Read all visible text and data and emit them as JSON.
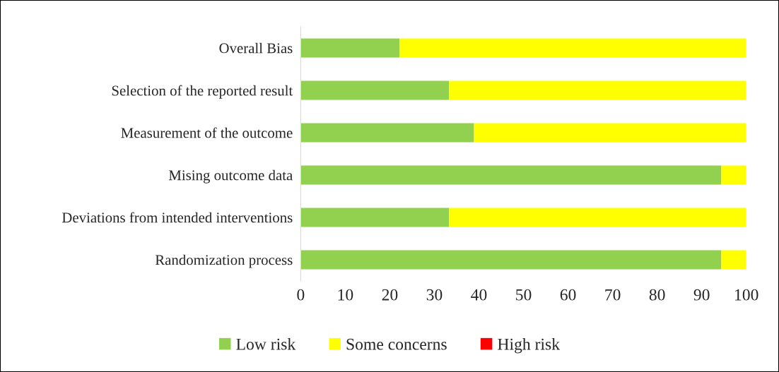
{
  "chart_data": {
    "type": "bar",
    "orientation": "horizontal",
    "stacked": true,
    "categories": [
      "Overall Bias",
      "Selection of the reported result",
      "Measurement of the outcome",
      "Mising outcome data",
      "Deviations from intended interventions",
      "Randomization process"
    ],
    "series": [
      {
        "name": "Low risk",
        "color": "#92d050",
        "values": [
          22.2,
          33.3,
          38.9,
          94.4,
          33.3,
          94.4
        ]
      },
      {
        "name": "Some concerns",
        "color": "#ffff00",
        "values": [
          77.8,
          66.7,
          61.1,
          5.6,
          66.7,
          5.6
        ]
      },
      {
        "name": "High risk",
        "color": "#ff0000",
        "values": [
          0,
          0,
          0,
          0,
          0,
          0
        ]
      }
    ],
    "xlim": [
      0,
      100
    ],
    "xticks": [
      0,
      10,
      20,
      30,
      40,
      50,
      60,
      70,
      80,
      90,
      100
    ],
    "grid": false,
    "legend": "bottom"
  }
}
